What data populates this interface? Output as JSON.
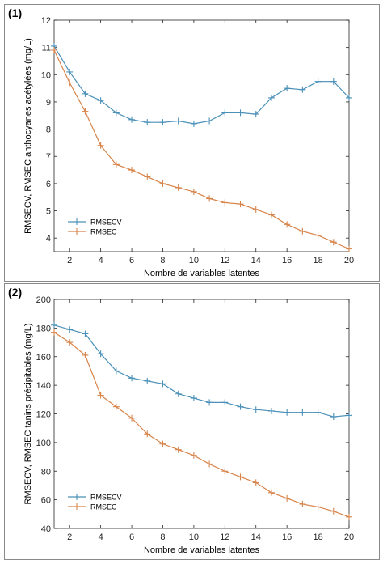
{
  "panels": [
    {
      "label": "(1)"
    },
    {
      "label": "(2)"
    }
  ],
  "chart_data": [
    {
      "type": "line",
      "xlabel": "Nombre de variables latentes",
      "ylabel": "RMSECV, RMSEC anthocyanes acétylées (mg/L)",
      "xlim": [
        1,
        20
      ],
      "ylim": [
        3.5,
        12
      ],
      "xticks": [
        2,
        4,
        6,
        8,
        10,
        12,
        14,
        16,
        18,
        20
      ],
      "yticks": [
        4,
        5,
        6,
        7,
        8,
        9,
        10,
        11,
        12
      ],
      "grid": false,
      "legend_position": "bottom-left",
      "x": [
        1,
        2,
        3,
        4,
        5,
        6,
        7,
        8,
        9,
        10,
        11,
        12,
        13,
        14,
        15,
        16,
        17,
        18,
        19,
        20
      ],
      "series": [
        {
          "name": "RMSECV",
          "color": "#4a90b8",
          "values": [
            11.05,
            10.1,
            9.3,
            9.05,
            8.6,
            8.35,
            8.25,
            8.25,
            8.3,
            8.2,
            8.3,
            8.6,
            8.6,
            8.55,
            9.15,
            9.5,
            9.45,
            9.75,
            9.75,
            9.15
          ]
        },
        {
          "name": "RMSEC",
          "color": "#d7844a",
          "values": [
            10.9,
            9.7,
            8.65,
            7.4,
            6.7,
            6.5,
            6.25,
            6.0,
            5.85,
            5.7,
            5.45,
            5.3,
            5.25,
            5.05,
            4.85,
            4.5,
            4.25,
            4.1,
            3.85,
            3.6
          ]
        }
      ]
    },
    {
      "type": "line",
      "xlabel": "Nombre de variables latentes",
      "ylabel": "RMSECV, RMSEC tanins précipitables (mg/L)",
      "xlim": [
        1,
        20
      ],
      "ylim": [
        40,
        200
      ],
      "xticks": [
        2,
        4,
        6,
        8,
        10,
        12,
        14,
        16,
        18,
        20
      ],
      "yticks": [
        40,
        60,
        80,
        100,
        120,
        140,
        160,
        180,
        200
      ],
      "grid": false,
      "legend_position": "bottom-left",
      "x": [
        1,
        2,
        3,
        4,
        5,
        6,
        7,
        8,
        9,
        10,
        11,
        12,
        13,
        14,
        15,
        16,
        17,
        18,
        19,
        20
      ],
      "series": [
        {
          "name": "RMSECV",
          "color": "#4a90b8",
          "values": [
            182,
            179,
            176,
            162,
            150,
            145,
            143,
            141,
            134,
            131,
            128,
            128,
            125,
            123,
            122,
            121,
            121,
            121,
            118,
            119
          ]
        },
        {
          "name": "RMSEC",
          "color": "#d7844a",
          "values": [
            177,
            170,
            161,
            133,
            125,
            117,
            106,
            99,
            95,
            91,
            85,
            80,
            76,
            72,
            65,
            61,
            57,
            55,
            52,
            48
          ]
        }
      ]
    }
  ]
}
